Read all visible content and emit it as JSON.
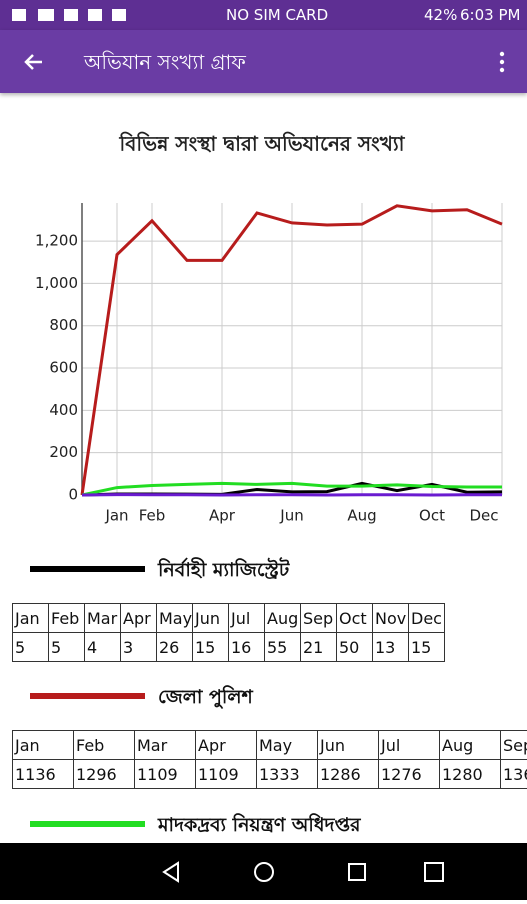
{
  "status_bar": {
    "carrier": "NO SIM CARD",
    "battery": "42%",
    "time": "6:03 PM"
  },
  "app_bar": {
    "title": "অভিযান সংখ্যা গ্রাফ"
  },
  "chart_data": {
    "type": "line",
    "title": "বিভিন্ন সংস্থা দ্বারা অভিযানের সংখ্যা",
    "x": [
      0,
      1,
      2,
      3,
      4,
      5,
      6,
      7,
      8,
      9,
      10,
      11,
      12
    ],
    "xlim": [
      0,
      12
    ],
    "xticks": [
      {
        "value": 1,
        "label": "Jan"
      },
      {
        "value": 2,
        "label": "Feb"
      },
      {
        "value": 4,
        "label": "Apr"
      },
      {
        "value": 6,
        "label": "Jun"
      },
      {
        "value": 8,
        "label": "Aug"
      },
      {
        "value": 10,
        "label": "Oct"
      },
      {
        "value": 12,
        "label": "Dec"
      }
    ],
    "ylim": [
      0,
      1380
    ],
    "yticks": [
      0,
      200,
      400,
      600,
      800,
      {
        "value": 1000,
        "label": "1,000"
      },
      {
        "value": 1200,
        "label": "1,200"
      }
    ],
    "grid": true,
    "series": [
      {
        "name": "নির্বাহী ম্যাজিস্ট্রেট",
        "color": "#000000",
        "values": [
          0,
          5,
          5,
          4,
          3,
          26,
          15,
          16,
          55,
          21,
          50,
          13,
          15
        ]
      },
      {
        "name": "জেলা পুলিশ",
        "color": "#b71c1c",
        "values": [
          0,
          1136,
          1296,
          1109,
          1109,
          1333,
          1286,
          1276,
          1280,
          1367,
          1343,
          1348,
          1280
        ]
      },
      {
        "name": "মাদকদ্রব্য নিয়ন্ত্রণ অধিদপ্তর",
        "color": "#22dd22",
        "values": [
          0,
          35,
          45,
          50,
          55,
          50,
          55,
          42,
          42,
          48,
          40,
          38,
          38
        ]
      },
      {
        "color": "#6a1bd0",
        "values": [
          0,
          2,
          1,
          1,
          0,
          1,
          1,
          0,
          1,
          1,
          0,
          1,
          1
        ]
      }
    ]
  },
  "tables": {
    "months": [
      "Jan",
      "Feb",
      "Mar",
      "Apr",
      "May",
      "Jun",
      "Jul",
      "Aug",
      "Sep",
      "Oct",
      "Nov",
      "Dec"
    ]
  }
}
